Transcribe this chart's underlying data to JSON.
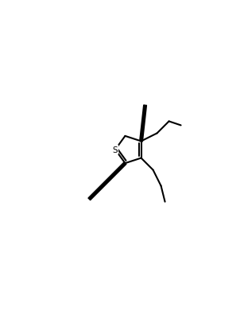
{
  "bg_color": "#ffffff",
  "line_color": "#000000",
  "line_width": 1.5,
  "fig_width": 3.07,
  "fig_height": 4.02,
  "dpi": 100
}
